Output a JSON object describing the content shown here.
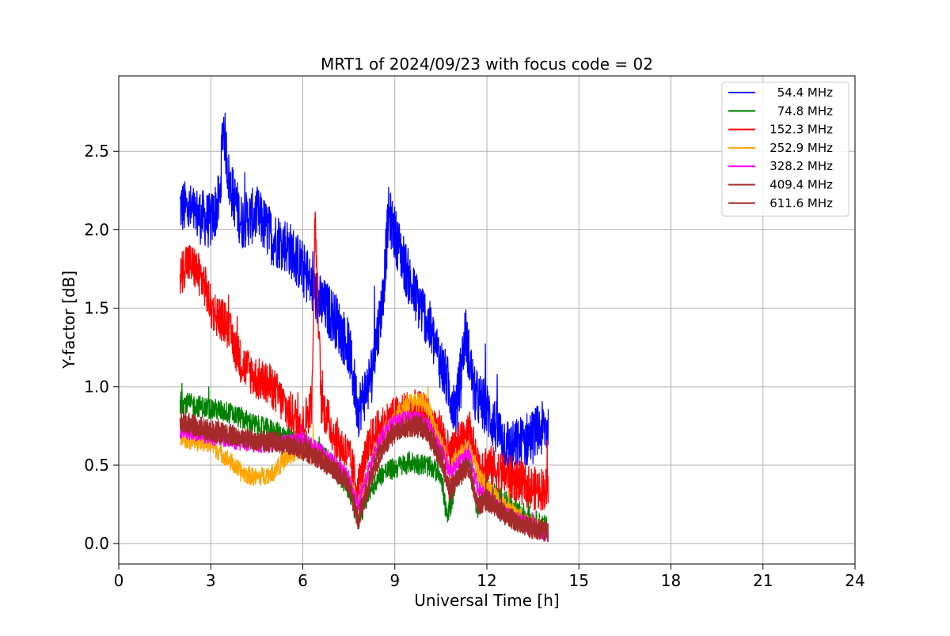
{
  "chart_data": {
    "type": "line",
    "title": "MRT1 of 2024/09/23 with focus code = 02",
    "xlabel": "Universal Time [h]",
    "ylabel": "Y-factor [dB]",
    "xlim": [
      0,
      24
    ],
    "ylim": [
      -0.13,
      2.98
    ],
    "x_ticks": [
      0,
      3,
      6,
      9,
      12,
      15,
      18,
      21,
      24
    ],
    "y_ticks": [
      0.0,
      0.5,
      1.0,
      1.5,
      2.0,
      2.5
    ],
    "x_tick_labels": [
      "0",
      "3",
      "6",
      "9",
      "12",
      "15",
      "18",
      "21",
      "24"
    ],
    "y_tick_labels": [
      "0.0",
      "0.5",
      "1.0",
      "1.5",
      "2.0",
      "2.5"
    ],
    "grid": true,
    "legend_position": "top-right",
    "series": [
      {
        "name": "54.4 MHz",
        "color": "#0000ff",
        "x": [
          2.0,
          2.5,
          3.0,
          3.3,
          3.4,
          3.6,
          4.0,
          4.5,
          5.0,
          5.5,
          6.0,
          6.5,
          7.0,
          7.5,
          7.8,
          8.2,
          8.6,
          8.8,
          9.2,
          9.6,
          10.0,
          10.5,
          11.0,
          11.3,
          11.6,
          12.0,
          12.4,
          12.8,
          13.2,
          13.6,
          14.0
        ],
        "y": [
          2.15,
          2.1,
          2.05,
          2.2,
          2.7,
          2.3,
          2.05,
          2.1,
          1.95,
          1.9,
          1.75,
          1.55,
          1.45,
          1.25,
          0.85,
          1.05,
          1.55,
          2.1,
          1.85,
          1.6,
          1.45,
          1.15,
          0.85,
          1.35,
          0.95,
          0.85,
          0.7,
          0.6,
          0.65,
          0.7,
          0.75
        ]
      },
      {
        "name": "74.8 MHz",
        "color": "#008000",
        "x": [
          2.0,
          2.5,
          3.0,
          3.5,
          4.0,
          4.5,
          5.0,
          5.5,
          6.0,
          6.5,
          7.0,
          7.5,
          7.8,
          8.2,
          8.6,
          9.0,
          9.5,
          10.0,
          10.5,
          10.7,
          11.0,
          11.4,
          11.7,
          12.0,
          12.5,
          13.0,
          13.5,
          14.0
        ],
        "y": [
          0.9,
          0.88,
          0.86,
          0.84,
          0.8,
          0.75,
          0.72,
          0.68,
          0.63,
          0.58,
          0.5,
          0.35,
          0.15,
          0.35,
          0.45,
          0.48,
          0.52,
          0.5,
          0.45,
          0.15,
          0.4,
          0.55,
          0.2,
          0.35,
          0.28,
          0.22,
          0.15,
          0.1
        ]
      },
      {
        "name": "152.3 MHz",
        "color": "#ff0000",
        "x": [
          2.0,
          2.2,
          2.5,
          2.8,
          3.0,
          3.5,
          4.0,
          4.5,
          5.0,
          5.5,
          6.0,
          6.3,
          6.4,
          6.6,
          7.0,
          7.5,
          7.8,
          8.2,
          8.6,
          9.0,
          9.5,
          10.0,
          10.5,
          10.8,
          11.0,
          11.4,
          11.7,
          12.0,
          12.5,
          13.0,
          13.5,
          14.0
        ],
        "y": [
          1.7,
          1.8,
          1.75,
          1.65,
          1.5,
          1.4,
          1.15,
          1.05,
          1.0,
          0.85,
          0.75,
          0.9,
          2.1,
          0.9,
          0.7,
          0.55,
          0.35,
          0.65,
          0.75,
          0.8,
          0.85,
          0.82,
          0.7,
          0.55,
          0.6,
          0.75,
          0.5,
          0.5,
          0.45,
          0.4,
          0.35,
          0.35
        ]
      },
      {
        "name": "252.9 MHz",
        "color": "#ffa500",
        "x": [
          2.0,
          2.5,
          3.0,
          3.5,
          4.0,
          4.5,
          5.0,
          5.5,
          6.0,
          6.5,
          7.0,
          7.5,
          7.8,
          8.2,
          8.6,
          9.0,
          9.5,
          10.0,
          10.5,
          10.8,
          11.0,
          11.4,
          11.7,
          12.0,
          12.5,
          13.0,
          13.5,
          14.0
        ],
        "y": [
          0.68,
          0.65,
          0.63,
          0.55,
          0.45,
          0.42,
          0.45,
          0.55,
          0.6,
          0.58,
          0.5,
          0.4,
          0.25,
          0.5,
          0.7,
          0.8,
          0.9,
          0.9,
          0.65,
          0.45,
          0.55,
          0.62,
          0.45,
          0.35,
          0.25,
          0.18,
          0.12,
          0.08
        ]
      },
      {
        "name": "328.2 MHz",
        "color": "#ff00ff",
        "x": [
          2.0,
          2.5,
          3.0,
          3.5,
          4.0,
          4.5,
          5.0,
          5.5,
          6.0,
          6.5,
          7.0,
          7.5,
          7.8,
          8.2,
          8.6,
          9.0,
          9.5,
          10.0,
          10.5,
          10.8,
          11.0,
          11.4,
          11.7,
          12.0,
          12.5,
          13.0,
          13.5,
          14.0
        ],
        "y": [
          0.72,
          0.7,
          0.68,
          0.66,
          0.64,
          0.62,
          0.63,
          0.65,
          0.66,
          0.6,
          0.52,
          0.42,
          0.25,
          0.5,
          0.7,
          0.78,
          0.8,
          0.78,
          0.6,
          0.45,
          0.5,
          0.58,
          0.35,
          0.3,
          0.2,
          0.15,
          0.1,
          0.06
        ]
      },
      {
        "name": "409.4 MHz",
        "color": "#a52a2a",
        "x": [
          2.0,
          2.5,
          3.0,
          3.5,
          4.0,
          4.5,
          5.0,
          5.5,
          6.0,
          6.5,
          7.0,
          7.5,
          7.8,
          8.2,
          8.6,
          9.0,
          9.5,
          10.0,
          10.5,
          10.8,
          11.0,
          11.4,
          11.7,
          12.0,
          12.5,
          13.0,
          13.5,
          14.0
        ],
        "y": [
          0.78,
          0.75,
          0.72,
          0.7,
          0.68,
          0.66,
          0.65,
          0.63,
          0.6,
          0.55,
          0.48,
          0.38,
          0.15,
          0.42,
          0.62,
          0.72,
          0.76,
          0.74,
          0.55,
          0.35,
          0.42,
          0.5,
          0.25,
          0.28,
          0.2,
          0.14,
          0.1,
          0.08
        ]
      },
      {
        "name": "611.6 MHz",
        "color": "#a52a2a",
        "x": [
          2.0,
          2.5,
          3.0,
          3.5,
          4.0,
          4.5,
          5.0,
          5.5,
          6.0,
          6.5,
          7.0,
          7.5,
          7.8,
          8.2,
          8.6,
          9.0,
          9.5,
          10.0,
          10.5,
          10.8,
          11.0,
          11.4,
          11.7,
          12.0,
          12.5,
          13.0,
          13.5,
          14.0
        ],
        "y": [
          0.76,
          0.74,
          0.71,
          0.69,
          0.67,
          0.65,
          0.64,
          0.62,
          0.59,
          0.54,
          0.47,
          0.36,
          0.14,
          0.4,
          0.6,
          0.7,
          0.74,
          0.72,
          0.53,
          0.33,
          0.4,
          0.48,
          0.24,
          0.27,
          0.19,
          0.13,
          0.09,
          0.07
        ]
      }
    ]
  }
}
